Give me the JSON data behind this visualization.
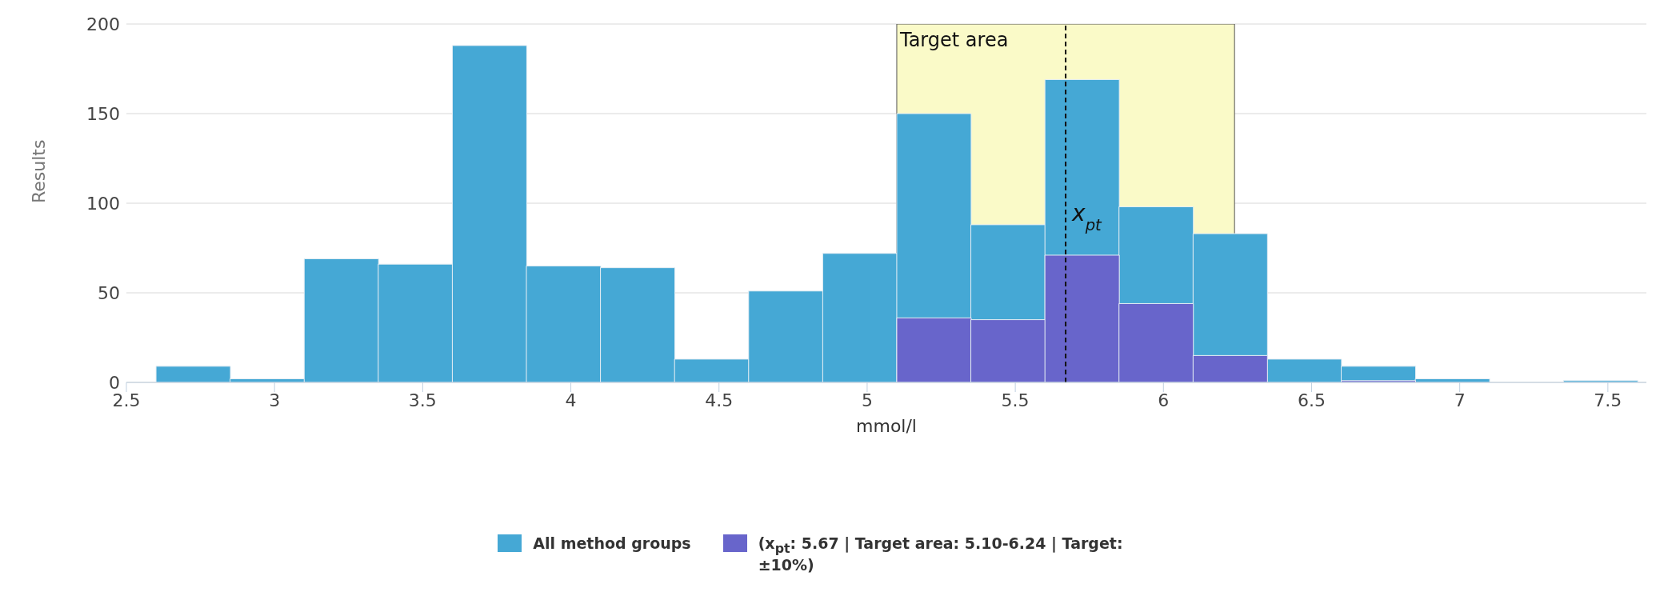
{
  "chart_data": {
    "type": "histogram",
    "xlabel": "mmol/l",
    "ylabel": "Results",
    "bins": [
      2.6,
      2.85,
      3.1,
      3.35,
      3.6,
      3.85,
      4.1,
      4.35,
      4.6,
      4.85,
      5.1,
      5.35,
      5.6,
      5.85,
      6.1,
      6.35,
      6.6,
      6.85,
      7.1,
      7.35,
      7.6
    ],
    "series": [
      {
        "name": "All method groups",
        "color": "#45a8d5",
        "values": [
          9,
          2,
          69,
          66,
          188,
          65,
          64,
          13,
          51,
          72,
          150,
          88,
          169,
          98,
          83,
          13,
          9,
          2,
          0,
          1
        ]
      },
      {
        "name": "(x$_{pt}$: 5.67 | Target area: 5.10-6.24 | Target: ±10%)",
        "color": "#6865cb",
        "values": [
          0,
          0,
          0,
          0,
          0,
          0,
          0,
          0,
          0,
          0,
          36,
          35,
          71,
          44,
          15,
          0,
          1,
          0,
          0,
          0
        ]
      }
    ],
    "xlim": [
      2.5,
      7.63
    ],
    "xticks": [
      2.5,
      3,
      3.5,
      4,
      4.5,
      5,
      5.5,
      6,
      6.5,
      7,
      7.5
    ],
    "ylim": [
      0,
      200
    ],
    "yticks": [
      0,
      50,
      100,
      150,
      200
    ],
    "grid": "y",
    "legend": "bottom",
    "bands": [
      {
        "axis": "x",
        "from": 5.1,
        "to": 6.24,
        "label": "Target area",
        "color": "#fafac8"
      }
    ],
    "ref_lines": [
      {
        "axis": "x",
        "value": 5.67,
        "label": "x$_{pt}$",
        "line_style": "dashed"
      }
    ]
  }
}
